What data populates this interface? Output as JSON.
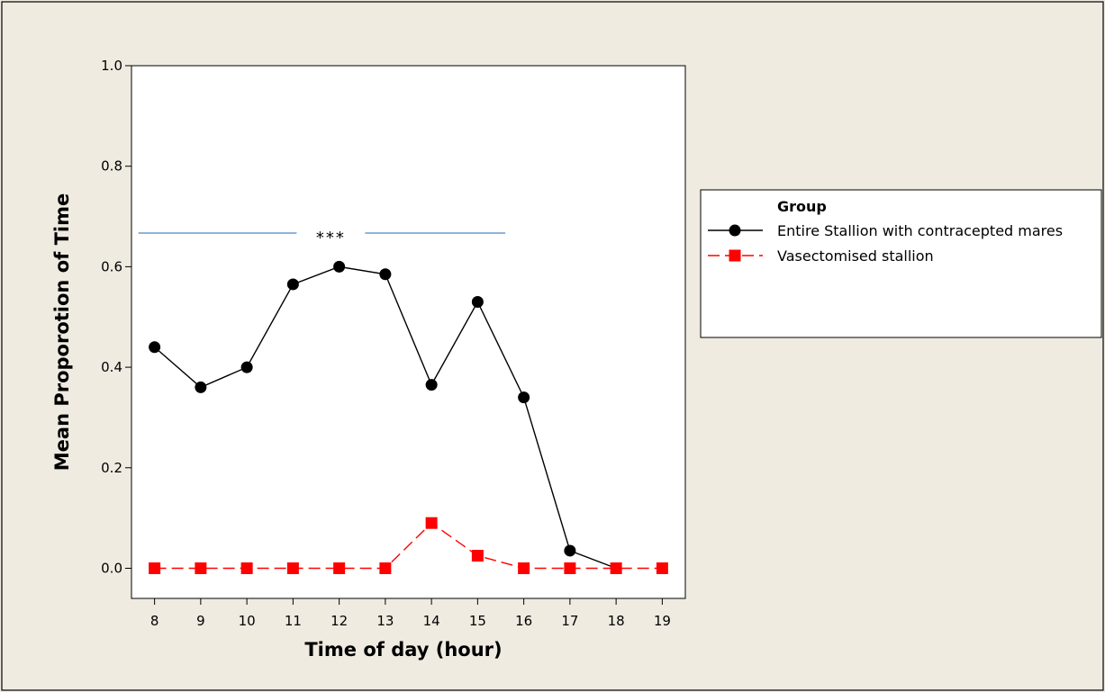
{
  "chart_data": {
    "type": "line",
    "title": "",
    "xlabel": "Time of day (hour)",
    "ylabel": "Mean Proporotion of Time",
    "x": [
      8,
      9,
      10,
      11,
      12,
      13,
      14,
      15,
      16,
      17,
      18,
      19
    ],
    "xlim": [
      7.5,
      19.5
    ],
    "ylim": [
      -0.06,
      1.0
    ],
    "yticks": [
      0.0,
      0.2,
      0.4,
      0.6,
      0.8,
      1.0
    ],
    "ytick_labels": [
      "0.0",
      "0.2",
      "0.4",
      "0.6",
      "0.8",
      "1.0"
    ],
    "xtick_labels": [
      "8",
      "9",
      "10",
      "11",
      "12",
      "13",
      "14",
      "15",
      "16",
      "17",
      "18",
      "19"
    ],
    "grid": false,
    "legend": {
      "title": "Group",
      "placement": "right, outside plot"
    },
    "series": [
      {
        "name": "Entire Stallion with contracepted mares",
        "x": [
          8,
          9,
          10,
          11,
          12,
          13,
          14,
          15,
          16,
          17,
          18
        ],
        "values": [
          0.44,
          0.36,
          0.4,
          0.565,
          0.6,
          0.585,
          0.365,
          0.53,
          0.34,
          0.035,
          0.0
        ],
        "color": "#000000",
        "marker": "circle",
        "line_style": "solid"
      },
      {
        "name": "Vasectomised stallion",
        "x": [
          8,
          9,
          10,
          11,
          12,
          13,
          14,
          15,
          16,
          17,
          18,
          19
        ],
        "values": [
          0.0,
          0.0,
          0.0,
          0.0,
          0.0,
          0.0,
          0.09,
          0.025,
          0.0,
          0.0,
          0.0,
          0.0
        ],
        "color": "#ff0000",
        "marker": "square",
        "line_style": "dashed"
      }
    ],
    "annotations": [
      {
        "text": "***",
        "type": "significance-bar",
        "x_start": 7.65,
        "x_end": 15.6,
        "y": 0.667,
        "color": "#4a86c6"
      }
    ]
  }
}
